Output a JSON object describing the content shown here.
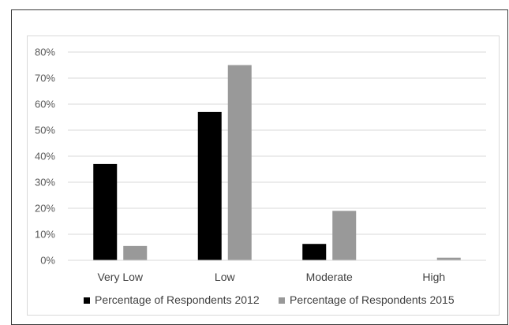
{
  "chart_data": {
    "type": "bar",
    "categories": [
      "Very Low",
      "Low",
      "Moderate",
      "High"
    ],
    "series": [
      {
        "name": "Percentage of Respondents 2012",
        "color": "#000000",
        "values": [
          37,
          57,
          6.3,
          0
        ]
      },
      {
        "name": "Percentage of Respondents 2015",
        "color": "#999999",
        "values": [
          5.5,
          75,
          19,
          1
        ]
      }
    ],
    "y_ticks": [
      "0%",
      "10%",
      "20%",
      "30%",
      "40%",
      "50%",
      "60%",
      "70%",
      "80%"
    ],
    "ylim": [
      0,
      80
    ],
    "grid": true,
    "legend": "bottom",
    "title": "",
    "xlabel": "",
    "ylabel": ""
  }
}
